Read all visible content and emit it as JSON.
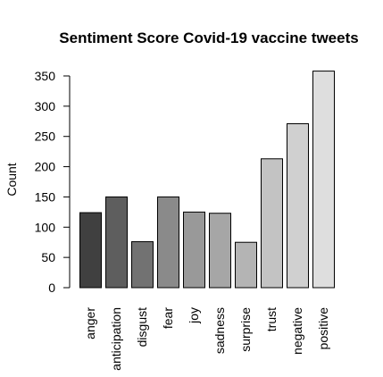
{
  "chart_data": {
    "type": "bar",
    "title": "Sentiment Score Covid-19 vaccine tweets",
    "xlabel": "",
    "ylabel": "Count",
    "ylim": [
      0,
      350
    ],
    "yticks": [
      "0",
      "50",
      "100",
      "150",
      "200",
      "250",
      "300",
      "350"
    ],
    "categories": [
      "anger",
      "anticipation",
      "disgust",
      "fear",
      "joy",
      "sadness",
      "surprise",
      "trust",
      "negative",
      "positive"
    ],
    "values": [
      124,
      150,
      76,
      150,
      125,
      123,
      75,
      213,
      271,
      358
    ],
    "colors": [
      "#404040",
      "#5e5e5e",
      "#727272",
      "#8a8a8a",
      "#999999",
      "#a6a6a6",
      "#b4b4b4",
      "#c3c3c3",
      "#d0d0d0",
      "#dedede"
    ],
    "grid": false,
    "legend": "none"
  }
}
